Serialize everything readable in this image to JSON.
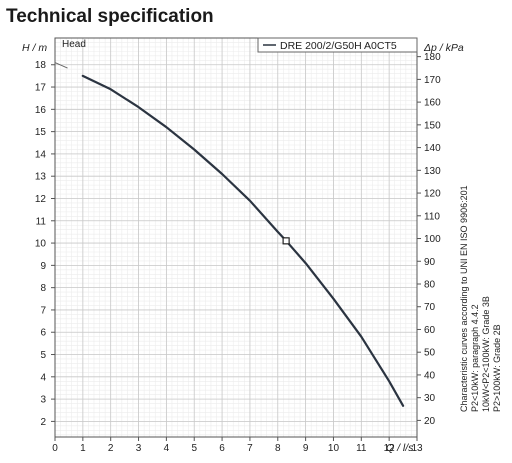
{
  "page": {
    "title": "Technical specification"
  },
  "chart_data": {
    "type": "line",
    "title": "",
    "xlabel": "Q / l/s",
    "ylabel": "H / m",
    "y2label": "Δp / kPa",
    "panel_label": "Head",
    "xlim": [
      0,
      13
    ],
    "ylim": [
      1.3,
      19.2
    ],
    "y2lim": [
      12.7,
      188.2
    ],
    "x_ticks": [
      0,
      1,
      2,
      3,
      4,
      5,
      6,
      7,
      8,
      9,
      10,
      11,
      12,
      13
    ],
    "y_ticks": [
      2,
      3,
      4,
      5,
      6,
      7,
      8,
      9,
      10,
      11,
      12,
      13,
      14,
      15,
      16,
      17,
      18
    ],
    "y2_ticks": [
      20,
      30,
      40,
      50,
      60,
      70,
      80,
      90,
      100,
      110,
      120,
      130,
      140,
      150,
      160,
      170,
      180
    ],
    "grid": true,
    "legend_position": "top-right",
    "series": [
      {
        "name": "DRE 200/2/G50H A0CT5",
        "color": "#2b3441",
        "x": [
          1.0,
          2.0,
          3.0,
          4.0,
          5.0,
          6.0,
          7.0,
          8.0,
          8.3,
          9.0,
          10.0,
          11.0,
          12.0,
          12.5
        ],
        "y": [
          17.5,
          16.9,
          16.1,
          15.2,
          14.2,
          13.1,
          11.9,
          10.5,
          10.1,
          9.1,
          7.5,
          5.8,
          3.8,
          2.7
        ]
      }
    ],
    "duty_point": {
      "x": 8.3,
      "y": 10.1
    },
    "side_note": [
      "Characteristic curves according to UNI EN ISO 9906:201",
      "P2<10kW: paragraph 4.4.2",
      "10kW<P2<100kW: Grade 3B",
      "P2>100kW: Grade 2B"
    ]
  }
}
